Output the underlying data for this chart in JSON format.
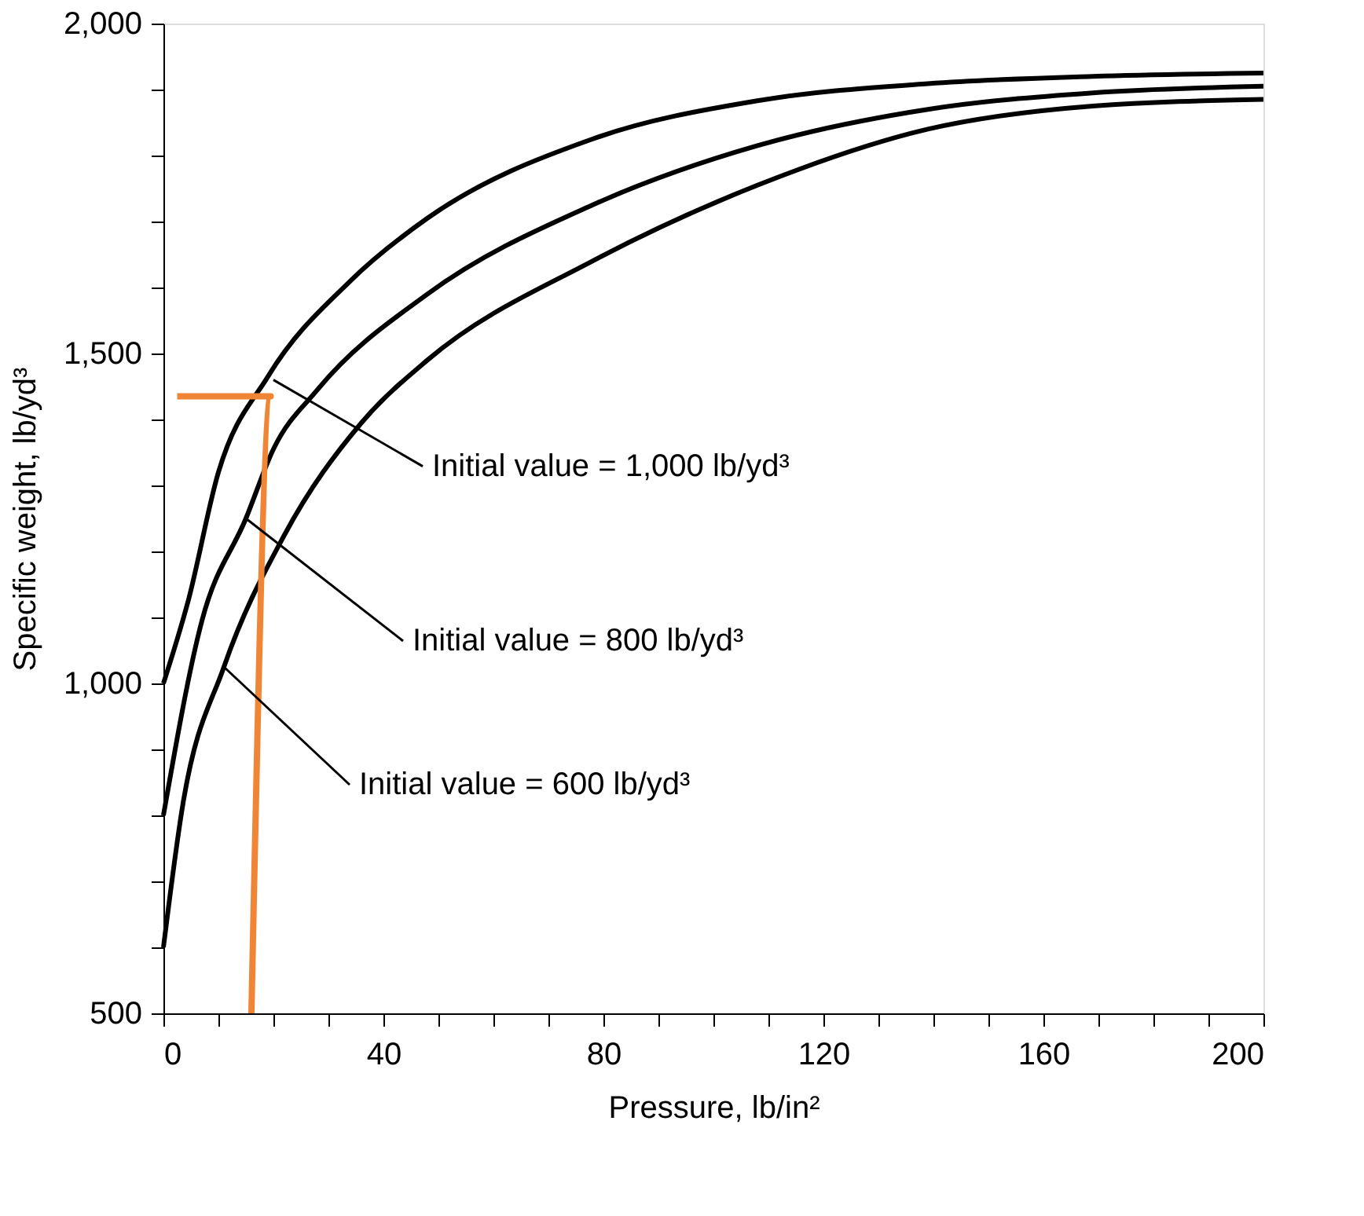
{
  "chart_data": {
    "type": "line",
    "xlabel": "Pressure, lb/in²",
    "ylabel": "Specific weight, lb/yd³",
    "xlim": [
      0,
      200
    ],
    "ylim": [
      500,
      2000
    ],
    "xticks": [
      0,
      {
        "value": 10,
        "label": null
      },
      {
        "value": 20,
        "label": null
      },
      {
        "value": 30,
        "label": null
      },
      40,
      {
        "value": 50,
        "label": null
      },
      {
        "value": 60,
        "label": null
      },
      {
        "value": 70,
        "label": null
      },
      80,
      {
        "value": 90,
        "label": null
      },
      {
        "value": 100,
        "label": null
      },
      {
        "value": 110,
        "label": null
      },
      120,
      {
        "value": 130,
        "label": null
      },
      {
        "value": 140,
        "label": null
      },
      {
        "value": 150,
        "label": null
      },
      160,
      {
        "value": 170,
        "label": null
      },
      {
        "value": 180,
        "label": null
      },
      {
        "value": 190,
        "label": null
      },
      200
    ],
    "yticks": [
      {
        "value": 500,
        "label": "500"
      },
      {
        "value": 600,
        "label": null
      },
      {
        "value": 700,
        "label": null
      },
      {
        "value": 800,
        "label": null
      },
      {
        "value": 900,
        "label": null
      },
      {
        "value": 1000,
        "label": "1,000"
      },
      {
        "value": 1100,
        "label": null
      },
      {
        "value": 1200,
        "label": null
      },
      {
        "value": 1300,
        "label": null
      },
      {
        "value": 1400,
        "label": null
      },
      {
        "value": 1500,
        "label": "1,500"
      },
      {
        "value": 1600,
        "label": null
      },
      {
        "value": 1700,
        "label": null
      },
      {
        "value": 1800,
        "label": null
      },
      {
        "value": 1900,
        "label": null
      },
      {
        "value": 2000,
        "label": "2,000"
      }
    ],
    "grid": false,
    "marker": "none",
    "line_style": "solid",
    "series": [
      {
        "color": "#000000",
        "x": [
          0,
          4.5,
          10,
          19,
          34,
          48,
          78,
          108,
          139,
          169,
          200
        ],
        "values": [
          1000,
          1125,
          1320,
          1465,
          1610,
          1705,
          1825,
          1883,
          1909,
          1920,
          1925
        ]
      },
      {
        "color": "#000000",
        "x": [
          0,
          7,
          15,
          20,
          28,
          48,
          78,
          108,
          139,
          169,
          200
        ],
        "values": [
          800,
          1095,
          1250,
          1355,
          1445,
          1590,
          1725,
          1815,
          1870,
          1895,
          1905
        ]
      },
      {
        "color": "#000000",
        "x": [
          0,
          3.5,
          11,
          22,
          36,
          48,
          78,
          108,
          139,
          169,
          200
        ],
        "values": [
          600,
          815,
          1025,
          1225,
          1395,
          1490,
          1640,
          1755,
          1840,
          1875,
          1885
        ]
      },
      {
        "color": "#f08536",
        "x": [
          2.5,
          19.5,
          16
        ],
        "values": [
          1435,
          1435,
          500
        ]
      }
    ],
    "annotations": [
      {
        "text": "Initial value = 1,000 lb/yd³",
        "x": 20,
        "y": 1460
      },
      {
        "text": "Initial value = 800 lb/yd³",
        "x": 15,
        "y": 1250
      },
      {
        "text": "Initial value = 600 lb/yd³",
        "x": 11,
        "y": 1025
      }
    ]
  }
}
